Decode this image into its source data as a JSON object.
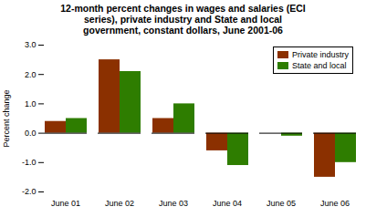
{
  "chart_data": {
    "type": "bar",
    "title": "12-month percent changes in wages and salaries (ECI\nseries), private industry and State and local\ngovernment, constant dollars, June 2001-06",
    "categories": [
      "June 01",
      "June 02",
      "June 03",
      "June 04",
      "June 05",
      "June 06"
    ],
    "series": [
      {
        "name": "Private industry",
        "color": "#8B3000",
        "values": [
          0.4,
          2.5,
          0.5,
          -0.6,
          0.0,
          -1.5
        ]
      },
      {
        "name": "State and local",
        "color": "#2E7D00",
        "values": [
          0.5,
          2.1,
          1.0,
          -1.1,
          -0.1,
          -1.0
        ]
      }
    ],
    "ylabel": "Percent change",
    "ylim": [
      -2.0,
      3.0
    ],
    "yticks": [
      {
        "value": -2.0,
        "label": "-2.0"
      },
      {
        "value": -1.0,
        "label": "-1.0"
      },
      {
        "value": 0.0,
        "label": "0.0"
      },
      {
        "value": 1.0,
        "label": "1.0"
      },
      {
        "value": 2.0,
        "label": "2.0"
      },
      {
        "value": 3.0,
        "label": "3.0"
      }
    ],
    "legend": "upper right",
    "grid": false
  }
}
